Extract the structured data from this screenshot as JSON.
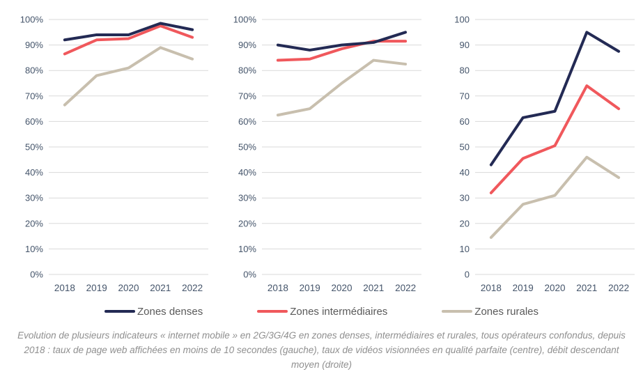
{
  "styles": {
    "grid_color": "#d9d9d9",
    "tick_color": "#44546a",
    "legend_text_color": "#595959",
    "caption_color": "#8f8f8f",
    "series_colors": {
      "denses": "#232a54",
      "intermediaires": "#f0585c",
      "rurales": "#c8bfae"
    }
  },
  "legend": {
    "items": [
      {
        "label": "Zones denses",
        "color": "#232a54"
      },
      {
        "label": "Zones intermédiaires",
        "color": "#f0585c"
      },
      {
        "label": "Zones rurales",
        "color": "#c8bfae"
      }
    ]
  },
  "caption": "Evolution de plusieurs indicateurs « internet mobile » en 2G/3G/4G en zones denses, intermédiaires et rurales, tous opérateurs confondus, depuis 2018 : taux de page web affichées en moins de 10 secondes (gauche), taux de vidéos visionnées en qualité parfaite (centre), débit descendant moyen (droite)",
  "chart_data": [
    {
      "type": "line",
      "position": "gauche",
      "categories": [
        "2018",
        "2019",
        "2020",
        "2021",
        "2022"
      ],
      "y_ticks_top_to_bottom": [
        "100%",
        "90%",
        "80%",
        "70%",
        "60%",
        "50%",
        "40%",
        "30%",
        "20%",
        "10%",
        "0%"
      ],
      "ylim": [
        0,
        100
      ],
      "grid": true,
      "series": [
        {
          "name": "Zones denses",
          "color": "#232a54",
          "values": [
            92,
            94,
            94,
            98.5,
            96
          ]
        },
        {
          "name": "Zones intermédiaires",
          "color": "#f0585c",
          "values": [
            86.5,
            92,
            92.5,
            97.5,
            93
          ]
        },
        {
          "name": "Zones rurales",
          "color": "#c8bfae",
          "values": [
            66.5,
            78,
            81,
            89,
            84.5
          ]
        }
      ]
    },
    {
      "type": "line",
      "position": "centre",
      "categories": [
        "2018",
        "2019",
        "2020",
        "2021",
        "2022"
      ],
      "y_ticks_top_to_bottom": [
        "100%",
        "90%",
        "80%",
        "70%",
        "60%",
        "50%",
        "40%",
        "30%",
        "20%",
        "10%",
        "0%"
      ],
      "ylim": [
        0,
        100
      ],
      "grid": true,
      "series": [
        {
          "name": "Zones denses",
          "color": "#232a54",
          "values": [
            90,
            88,
            90,
            91,
            95
          ]
        },
        {
          "name": "Zones intermédiaires",
          "color": "#f0585c",
          "values": [
            84,
            84.5,
            88.5,
            91.5,
            91.5
          ]
        },
        {
          "name": "Zones rurales",
          "color": "#c8bfae",
          "values": [
            62.5,
            65,
            75,
            84,
            82.5
          ]
        }
      ]
    },
    {
      "type": "line",
      "position": "droite",
      "categories": [
        "2018",
        "2019",
        "2020",
        "2021",
        "2022"
      ],
      "y_ticks_top_to_bottom": [
        "100",
        "90",
        "80",
        "70",
        "60",
        "50",
        "40",
        "30",
        "20",
        "10",
        "0"
      ],
      "ylim": [
        0,
        100
      ],
      "grid": true,
      "series": [
        {
          "name": "Zones denses",
          "color": "#232a54",
          "values": [
            43,
            61.5,
            64,
            95,
            87.5
          ]
        },
        {
          "name": "Zones intermédiaires",
          "color": "#f0585c",
          "values": [
            32,
            45.5,
            50.5,
            74,
            65
          ]
        },
        {
          "name": "Zones rurales",
          "color": "#c8bfae",
          "values": [
            14.5,
            27.5,
            31,
            46,
            38
          ]
        }
      ]
    }
  ]
}
